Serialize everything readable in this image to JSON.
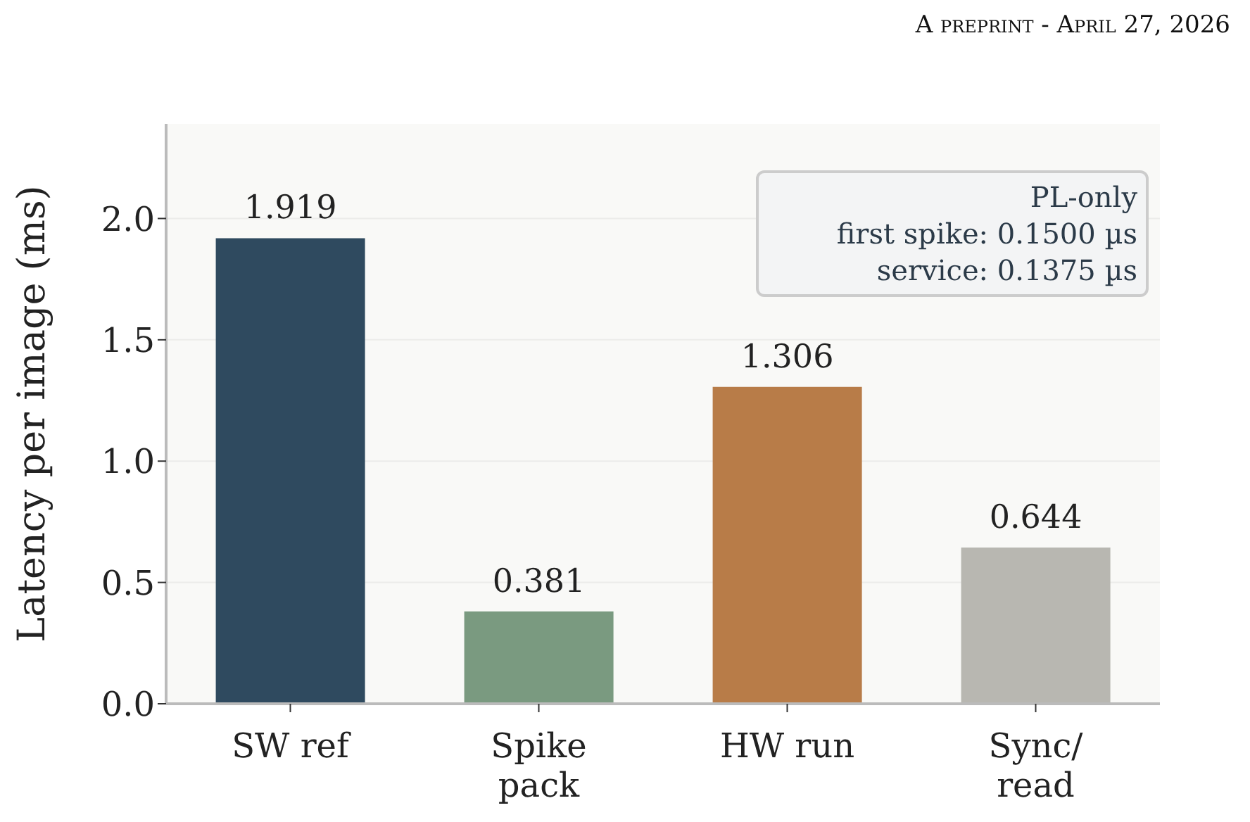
{
  "chart_data": {
    "type": "bar",
    "ylabel": "Latency per image (ms)",
    "categories": [
      "SW ref",
      "Spike\npack",
      "HW run",
      "Sync/\nread"
    ],
    "values": [
      1.919,
      0.381,
      1.306,
      0.644
    ],
    "colors": [
      "#2f4a5f",
      "#7a9a80",
      "#b87c48",
      "#b8b7b1"
    ],
    "ylim": [
      0,
      2.39
    ],
    "yticks": [
      {
        "value": 0,
        "label": "0.0"
      },
      0.5,
      {
        "value": 1,
        "label": "1.0"
      },
      1.5,
      {
        "value": 2,
        "label": "2.0"
      }
    ],
    "grid": "y",
    "data_labels": true,
    "annotations": [
      "A preprint - April 27, 2026",
      "PL-only",
      "first spike: 0.1500 µs",
      "service: 0.1375 µs"
    ]
  }
}
